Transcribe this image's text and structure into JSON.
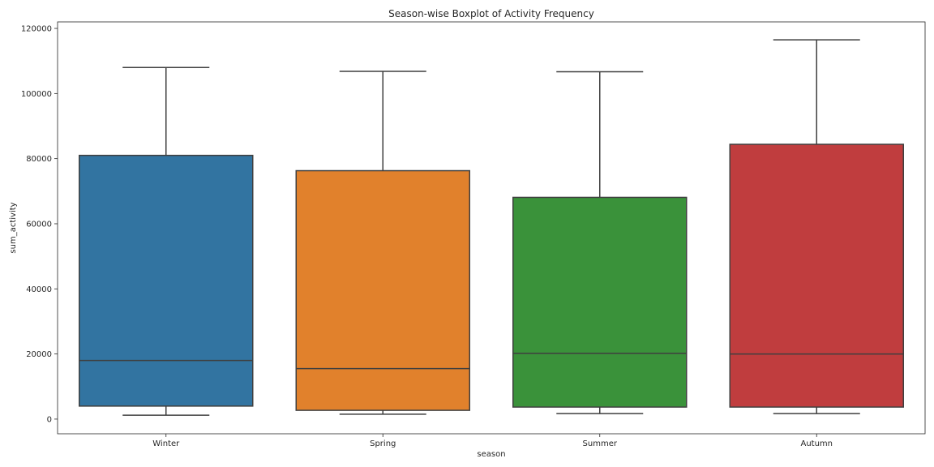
{
  "chart_data": {
    "type": "boxplot",
    "title": "Season-wise Boxplot of Activity Frequency",
    "xlabel": "season",
    "ylabel": "sum_activity",
    "ylim": [
      -4500,
      122000
    ],
    "yticks": [
      0,
      20000,
      40000,
      60000,
      80000,
      100000,
      120000
    ],
    "ytick_labels": [
      "0",
      "20000",
      "40000",
      "60000",
      "80000",
      "100000",
      "120000"
    ],
    "grid": false,
    "legend": "none",
    "categories": [
      "Winter",
      "Spring",
      "Summer",
      "Autumn"
    ],
    "colors": [
      "#3274a1",
      "#e1812c",
      "#3a923a",
      "#c03d3e"
    ],
    "edge_color": "#3f3f3f",
    "boxes": [
      {
        "category": "Winter",
        "whisker_low": 1200,
        "q1": 4000,
        "median": 18000,
        "q3": 81000,
        "whisker_high": 108000
      },
      {
        "category": "Spring",
        "whisker_low": 1500,
        "q1": 2700,
        "median": 15500,
        "q3": 76300,
        "whisker_high": 106800
      },
      {
        "category": "Summer",
        "whisker_low": 1700,
        "q1": 3700,
        "median": 20200,
        "q3": 68100,
        "whisker_high": 106700
      },
      {
        "category": "Autumn",
        "whisker_low": 1700,
        "q1": 3700,
        "median": 20000,
        "q3": 84400,
        "whisker_high": 116500
      }
    ]
  }
}
